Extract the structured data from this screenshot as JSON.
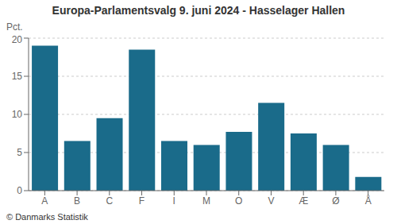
{
  "chart_data": {
    "type": "bar",
    "title": "Europa-Parlamentsvalg 9. juni 2024 - Hasselager Hallen",
    "ylabel": "Pct.",
    "annotations": [
      "© Danmarks Statistik"
    ],
    "categories": [
      "A",
      "B",
      "C",
      "F",
      "I",
      "M",
      "O",
      "V",
      "Æ",
      "Ø",
      "Å"
    ],
    "values": [
      19.0,
      6.5,
      9.5,
      18.5,
      6.5,
      6.0,
      7.7,
      11.5,
      7.5,
      6.0,
      1.8
    ],
    "color": "#1a6b8a",
    "ylim": [
      0,
      20
    ],
    "yticks": [
      0,
      5,
      10,
      15,
      20
    ],
    "grid": true
  }
}
